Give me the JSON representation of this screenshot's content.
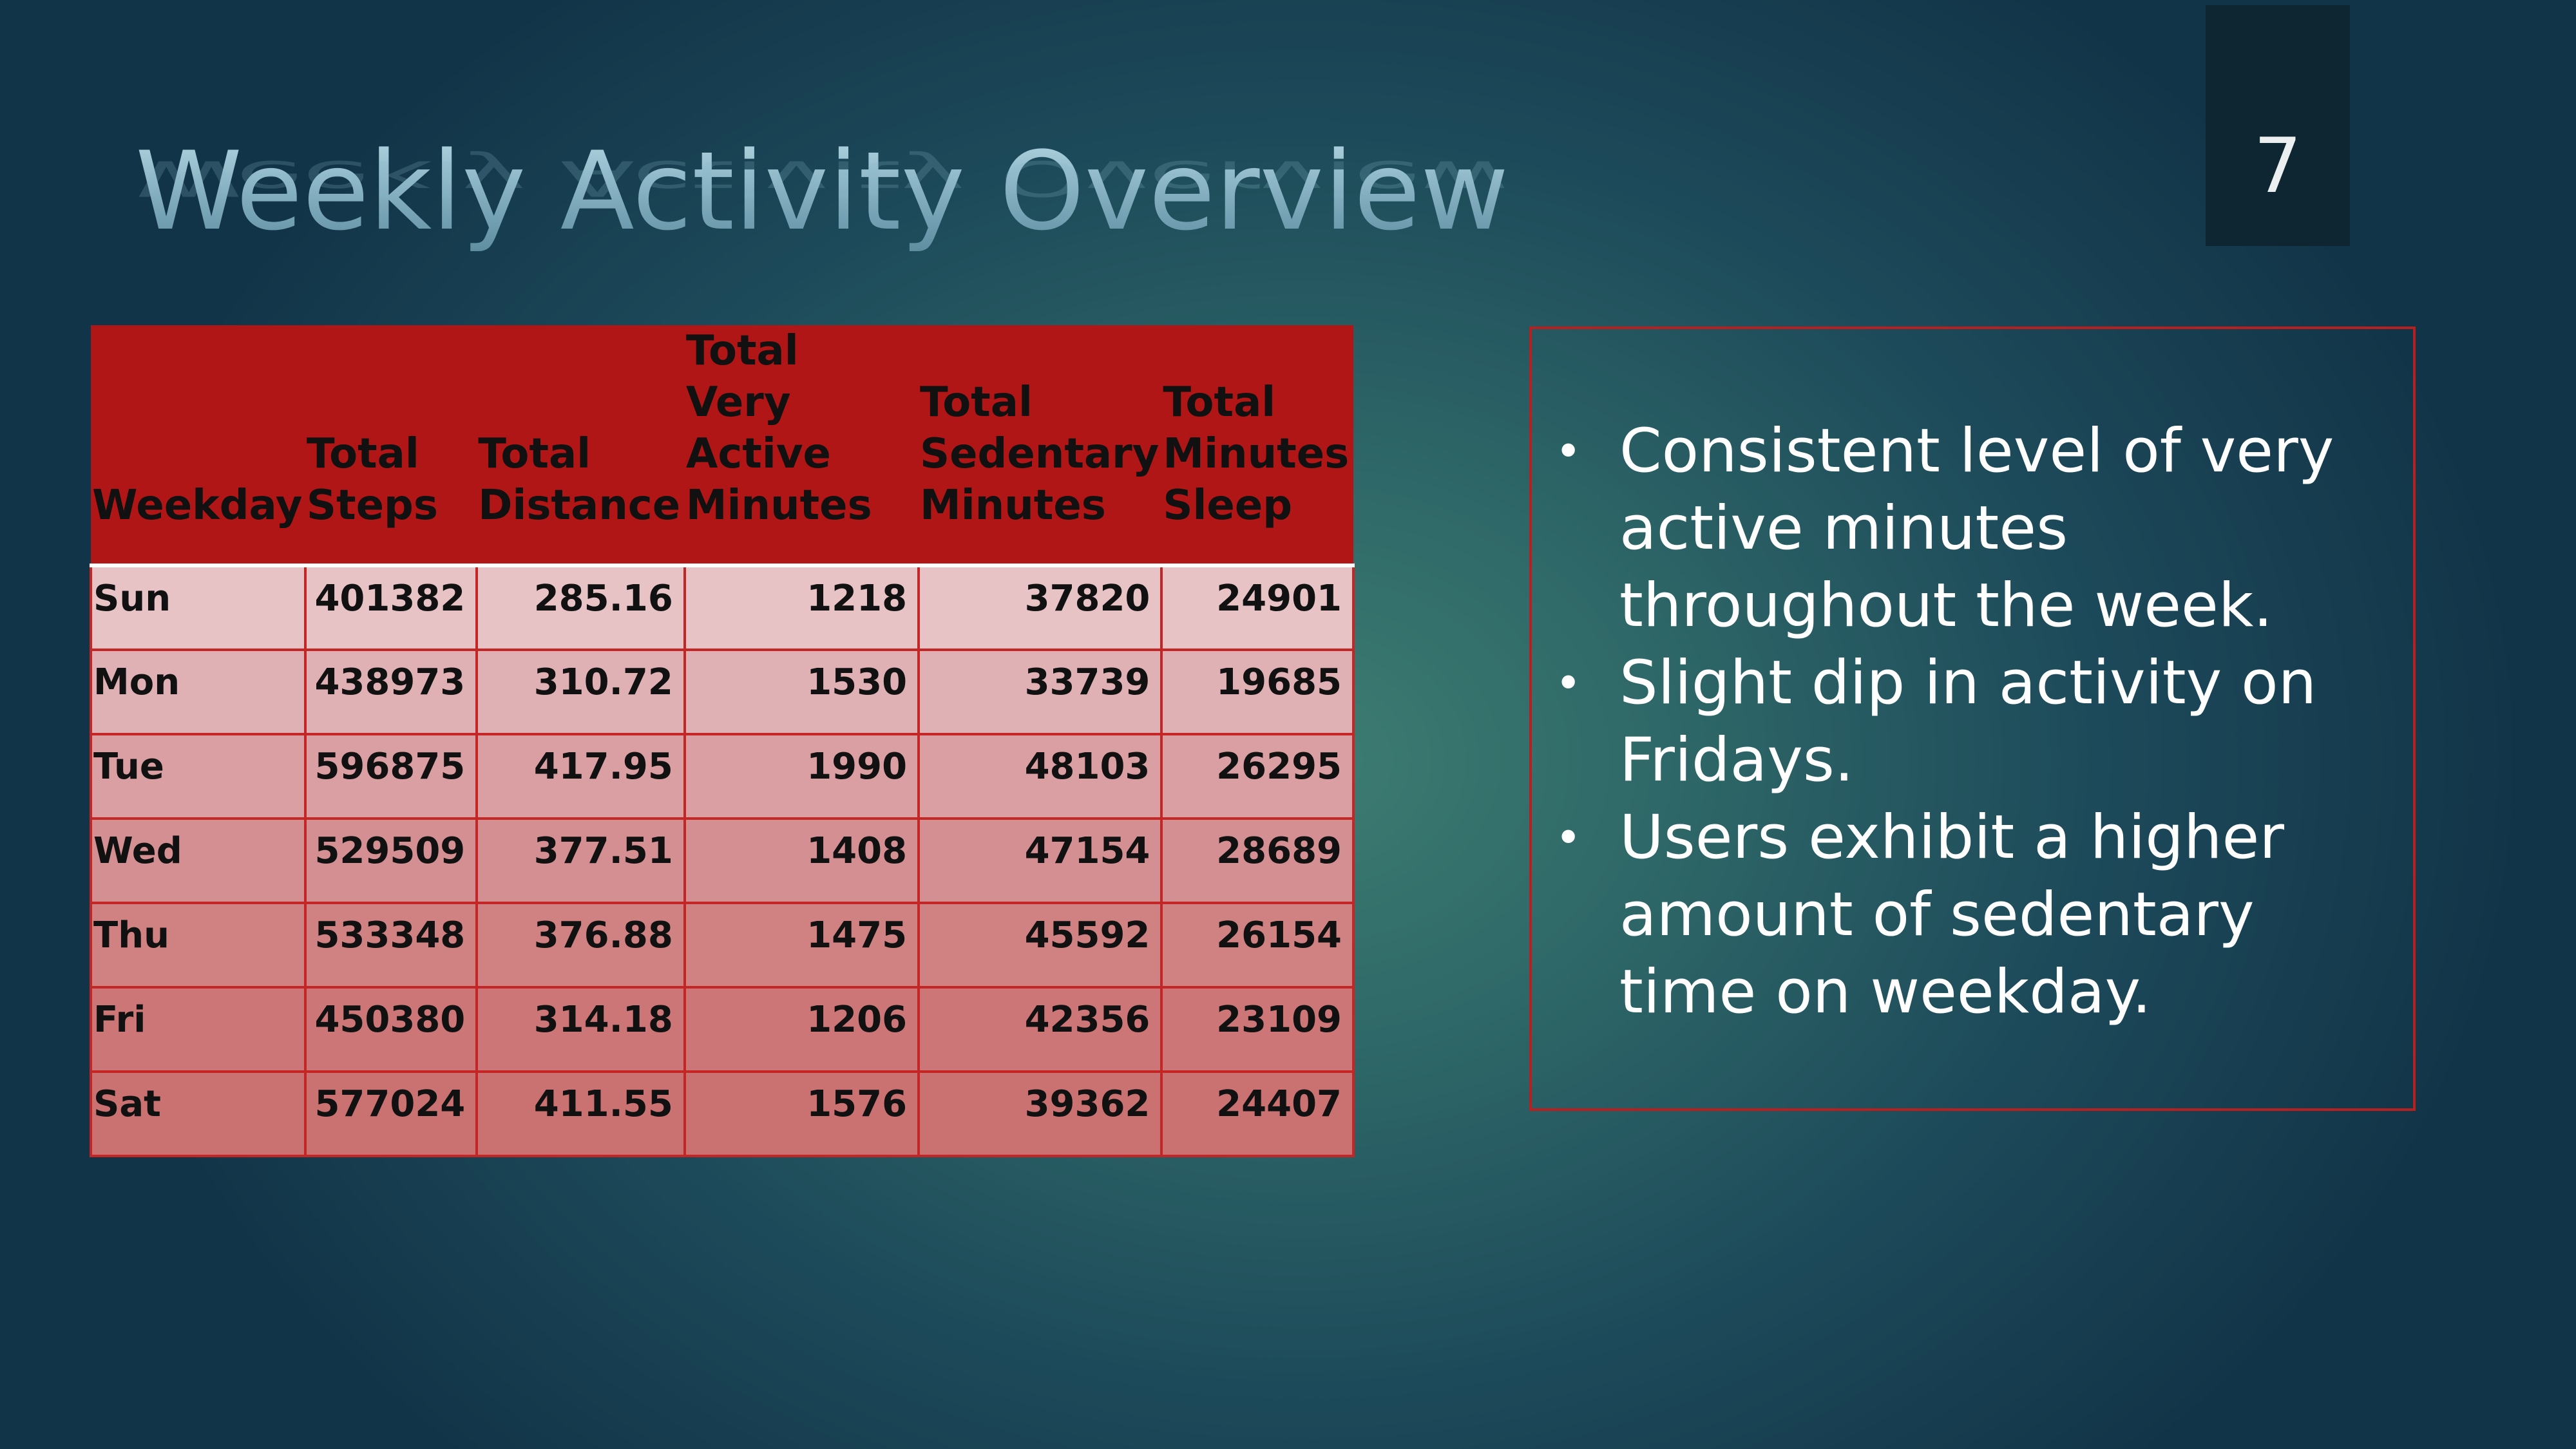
{
  "slide": {
    "number": "7",
    "title": "Weekly Activity Overview"
  },
  "table": {
    "headers": [
      "Weekday",
      "Total Steps",
      "Total Distance",
      "Total Very Active Minutes",
      "Total Sedentary Minutes",
      "Total Minutes Sleep"
    ],
    "rows": [
      [
        "Sun",
        "401382",
        "285.16",
        "1218",
        "37820",
        "24901"
      ],
      [
        "Mon",
        "438973",
        "310.72",
        "1530",
        "33739",
        "19685"
      ],
      [
        "Tue",
        "596875",
        "417.95",
        "1990",
        "48103",
        "26295"
      ],
      [
        "Wed",
        "529509",
        "377.51",
        "1408",
        "47154",
        "28689"
      ],
      [
        "Thu",
        "533348",
        "376.88",
        "1475",
        "45592",
        "26154"
      ],
      [
        "Fri",
        "450380",
        "314.18",
        "1206",
        "42356",
        "23109"
      ],
      [
        "Sat",
        "577024",
        "411.55",
        "1576",
        "39362",
        "24407"
      ]
    ]
  },
  "insights": {
    "bullet_glyph": "•",
    "items": [
      "Consistent level of very active minutes throughout the week.",
      "Slight dip in activity on Fridays.",
      "Users exhibit a higher amount of  sedentary time on weekday."
    ]
  },
  "colors": {
    "header_fill": "#b01616",
    "border": "#c42626",
    "text_light": "#ffffff"
  }
}
